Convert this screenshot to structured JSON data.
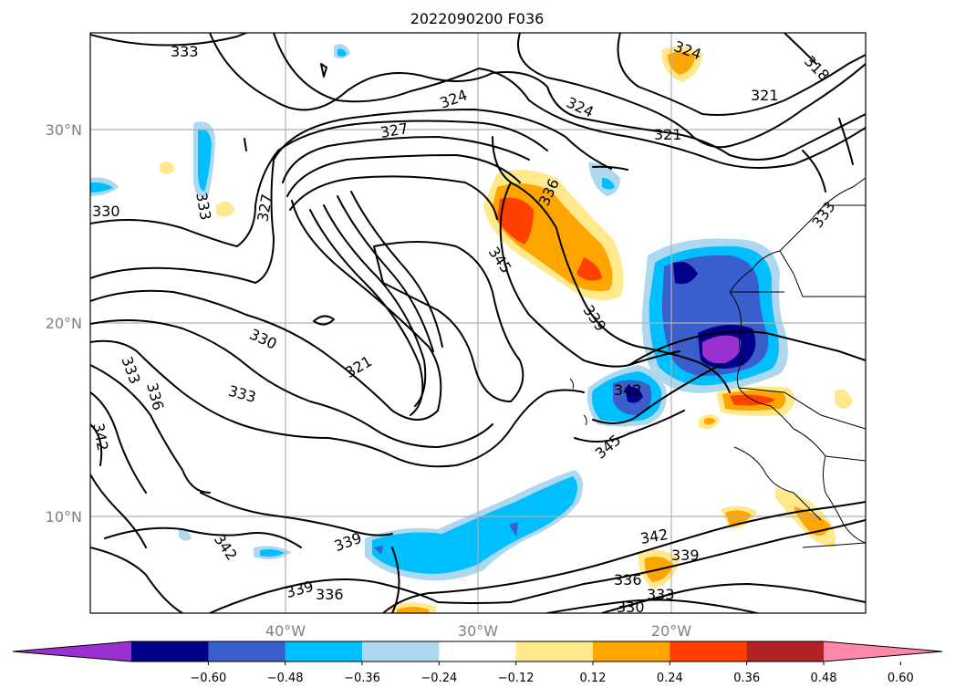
{
  "title": "2022090200 F036",
  "lat_labels": [
    "30°N",
    "20°N",
    "10°N"
  ],
  "lon_labels": [
    "40°W",
    "30°W",
    "20°W"
  ],
  "colorbar": {
    "ticks": [
      "−0.60",
      "−0.48",
      "−0.36",
      "−0.24",
      "−0.12",
      "0.12",
      "0.24",
      "0.36",
      "0.48",
      "0.60"
    ],
    "colors": [
      "#9b30d0",
      "#00008b",
      "#3a5fcd",
      "#00bfff",
      "#add8f0",
      "#ffffff",
      "#ffe98c",
      "#ffa500",
      "#ff4000",
      "#b22222",
      "#ff88aa"
    ]
  },
  "contour_labels": {
    "c1": "333",
    "c2": "324",
    "c3": "318",
    "c4": "321",
    "c5": "324",
    "c6": "327",
    "c7": "321",
    "c8": "336",
    "c9": "330",
    "c10": "333",
    "c11": "327",
    "c12": "333",
    "c13": "345",
    "c14": "339",
    "c15": "330",
    "c16": "324",
    "c17": "321",
    "c18": "333",
    "c19": "336",
    "c20": "333",
    "c21": "342",
    "c22": "342",
    "c23": "345",
    "c24": "339",
    "c25": "342",
    "c26": "342",
    "c27": "339",
    "c28": "336",
    "c29": "339",
    "c30": "336",
    "c31": "330",
    "c32": "333"
  }
}
